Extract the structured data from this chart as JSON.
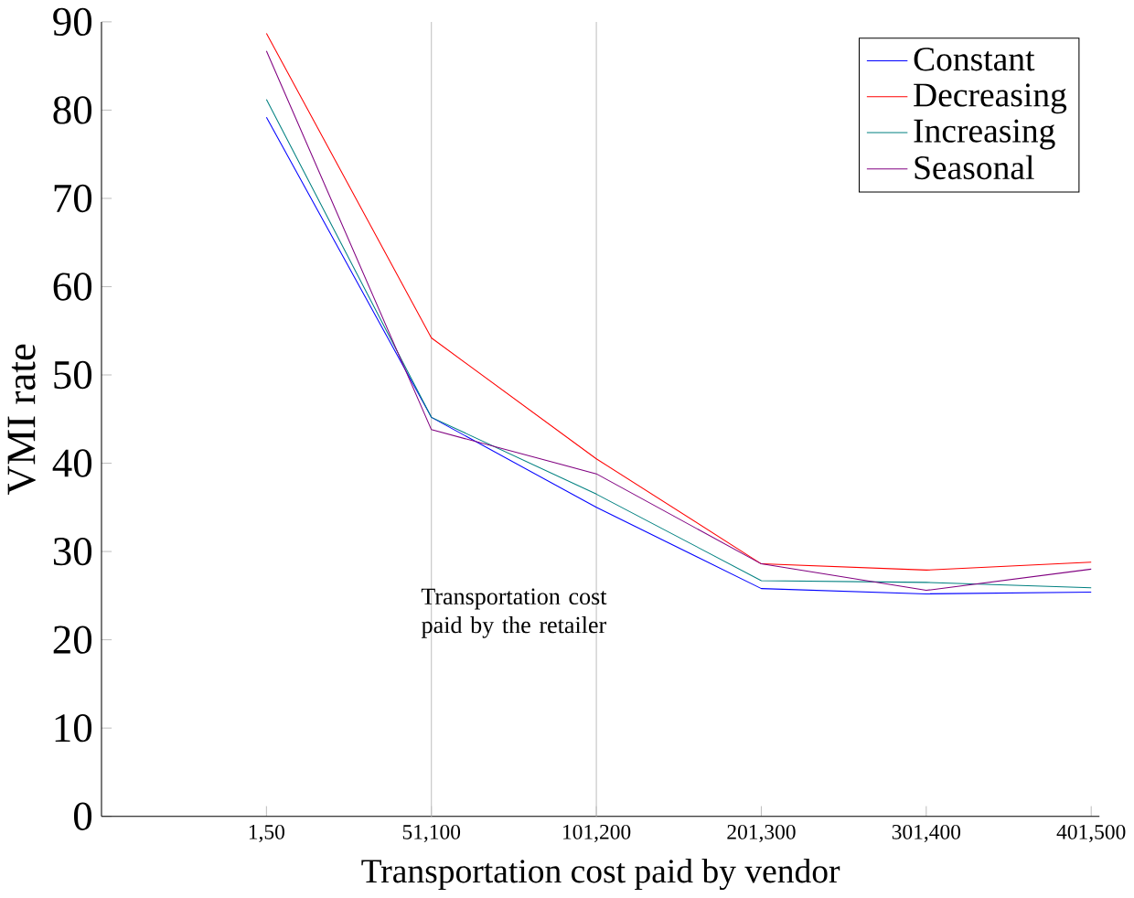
{
  "chart_data": {
    "type": "line",
    "xlabel": "Transportation cost paid by vendor",
    "ylabel": "VMI rate",
    "categories": [
      "1,50",
      "51,100",
      "101,200",
      "201,300",
      "301,400",
      "401,500"
    ],
    "series": [
      {
        "name": "Constant",
        "color": "#0000ff",
        "values": [
          79.2,
          45.2,
          35,
          25.8,
          25.2,
          25.4
        ]
      },
      {
        "name": "Decreasing",
        "color": "#ff0000",
        "values": [
          88.7,
          54.2,
          40.5,
          28.6,
          27.9,
          28.8
        ]
      },
      {
        "name": "Increasing",
        "color": "#008080",
        "values": [
          81.2,
          45.2,
          36.5,
          26.7,
          26.5,
          25.9
        ]
      },
      {
        "name": "Seasonal",
        "color": "#800080",
        "values": [
          86.7,
          43.8,
          38.8,
          28.6,
          25.6,
          28.0
        ]
      }
    ],
    "ylim": [
      0,
      90
    ],
    "yticks": [
      0,
      10,
      20,
      30,
      40,
      50,
      60,
      70,
      80,
      90
    ],
    "ref_lines": [
      {
        "axis": "x",
        "value": "51,100",
        "color": "#c0c0c0"
      },
      {
        "axis": "x",
        "value": "101,200",
        "color": "#c0c0c0"
      }
    ],
    "annotations": [
      "Transportation cost paid by the retailer"
    ],
    "legend": "top right",
    "grid": false,
    "marker": "none",
    "line_style": "solid"
  }
}
